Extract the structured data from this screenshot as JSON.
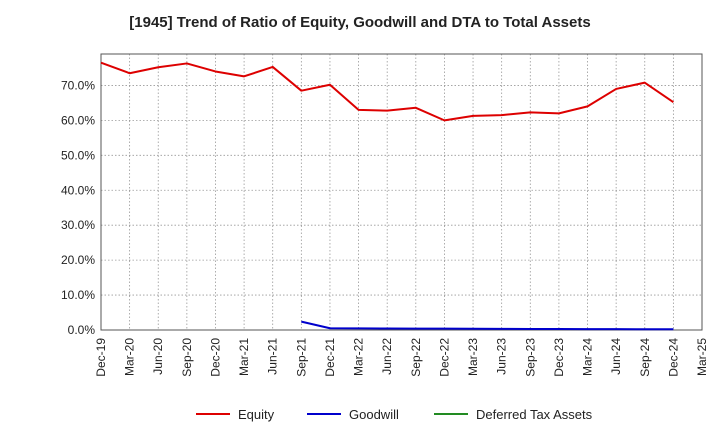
{
  "chart_data": {
    "type": "line",
    "title": "[1945]  Trend of Ratio of Equity, Goodwill and DTA to Total Assets",
    "xlabel": "",
    "ylabel": "",
    "ylim": [
      0,
      79
    ],
    "yticks": [
      0,
      10,
      20,
      30,
      40,
      50,
      60,
      70
    ],
    "ytick_labels": [
      "0.0%",
      "10.0%",
      "20.0%",
      "30.0%",
      "40.0%",
      "50.0%",
      "60.0%",
      "70.0%"
    ],
    "categories": [
      "Dec-19",
      "Mar-20",
      "Jun-20",
      "Sep-20",
      "Dec-20",
      "Mar-21",
      "Jun-21",
      "Sep-21",
      "Dec-21",
      "Mar-22",
      "Jun-22",
      "Sep-22",
      "Dec-22",
      "Mar-23",
      "Jun-23",
      "Sep-23",
      "Dec-23",
      "Mar-24",
      "Jun-24",
      "Sep-24",
      "Dec-24",
      "Mar-25"
    ],
    "series": [
      {
        "name": "Equity",
        "color": "#dd0000",
        "values": [
          76.5,
          73.5,
          75.2,
          76.3,
          74.0,
          72.6,
          75.3,
          68.5,
          70.2,
          63.0,
          62.8,
          63.6,
          60.0,
          61.3,
          61.5,
          62.3,
          62.0,
          64.0,
          69.0,
          70.8,
          65.2,
          null
        ]
      },
      {
        "name": "Goodwill",
        "color": "#0000cc",
        "values": [
          null,
          null,
          null,
          null,
          null,
          null,
          null,
          2.4,
          0.5,
          0.45,
          0.42,
          0.4,
          0.38,
          0.35,
          0.33,
          0.3,
          0.28,
          0.26,
          0.24,
          0.22,
          0.2,
          null
        ]
      },
      {
        "name": "Deferred Tax Assets",
        "color": "#228b22",
        "values": [
          null,
          null,
          null,
          null,
          null,
          null,
          null,
          null,
          null,
          null,
          null,
          null,
          null,
          null,
          null,
          null,
          null,
          null,
          null,
          null,
          null,
          null
        ]
      }
    ],
    "grid": true,
    "legend": "bottom-center"
  }
}
